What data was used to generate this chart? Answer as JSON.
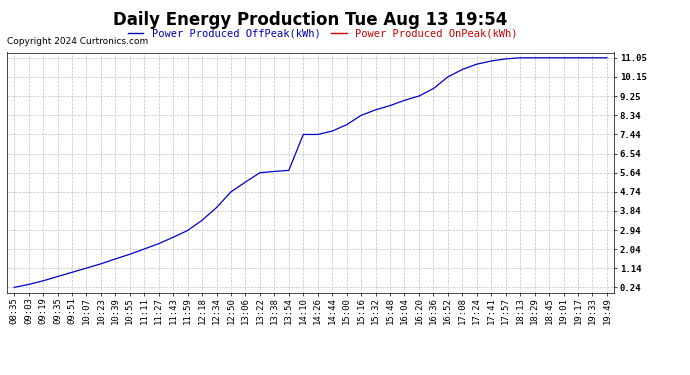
{
  "title": "Daily Energy Production Tue Aug 13 19:54",
  "copyright": "Copyright 2024 Curtronics.com",
  "legend_offpeak": "Power Produced OffPeak(kWh)",
  "legend_onpeak": "Power Produced OnPeak(kWh)",
  "legend_offpeak_color": "#0000bb",
  "legend_onpeak_color": "#cc0000",
  "line_color": "#0000cc",
  "background_color": "#ffffff",
  "plot_bg_color": "#ffffff",
  "grid_color": "#bbbbbb",
  "yticks": [
    0.24,
    1.14,
    2.04,
    2.94,
    3.84,
    4.74,
    5.64,
    6.54,
    7.44,
    8.34,
    9.25,
    10.15,
    11.05
  ],
  "ylim": [
    0.0,
    11.3
  ],
  "x_labels": [
    "08:35",
    "09:03",
    "09:19",
    "09:35",
    "09:51",
    "10:07",
    "10:23",
    "10:39",
    "10:55",
    "11:11",
    "11:27",
    "11:43",
    "11:59",
    "12:18",
    "12:34",
    "12:50",
    "13:06",
    "13:22",
    "13:38",
    "13:54",
    "14:10",
    "14:26",
    "14:44",
    "15:00",
    "15:16",
    "15:32",
    "15:48",
    "16:04",
    "16:20",
    "16:36",
    "16:52",
    "17:08",
    "17:24",
    "17:41",
    "17:57",
    "18:13",
    "18:29",
    "18:45",
    "19:01",
    "19:17",
    "19:33",
    "19:49"
  ],
  "y_values": [
    0.24,
    0.38,
    0.55,
    0.75,
    0.95,
    1.15,
    1.35,
    1.58,
    1.8,
    2.05,
    2.3,
    2.6,
    2.92,
    3.4,
    4.0,
    4.74,
    5.2,
    5.64,
    5.7,
    5.75,
    7.44,
    7.44,
    7.6,
    7.9,
    8.34,
    8.6,
    8.8,
    9.05,
    9.25,
    9.6,
    10.15,
    10.5,
    10.75,
    10.9,
    11.0,
    11.05,
    11.05,
    11.05,
    11.05,
    11.05,
    11.05,
    11.05
  ],
  "title_fontsize": 12,
  "tick_fontsize": 6.5,
  "copyright_fontsize": 6.5,
  "legend_fontsize": 7.5
}
